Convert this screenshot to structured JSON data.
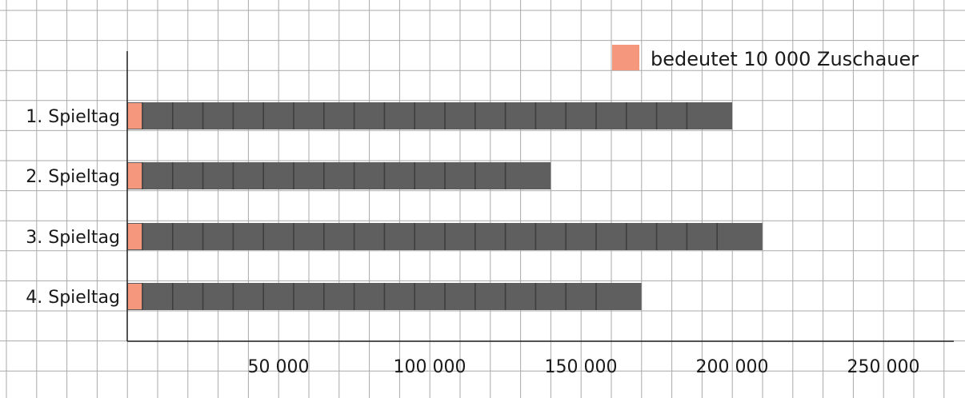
{
  "chart_data": {
    "type": "bar",
    "orientation": "horizontal",
    "categories": [
      "1. Spieltag",
      "2. Spieltag",
      "3. Spieltag",
      "4. Spieltag"
    ],
    "values": [
      200000,
      140000,
      210000,
      170000
    ],
    "xlim": [
      0,
      270000
    ],
    "x_ticks": [
      50000,
      100000,
      150000,
      200000,
      250000
    ],
    "x_tick_labels": [
      "50 000",
      "100 000",
      "150 000",
      "200 000",
      "250 000"
    ],
    "legend": {
      "label": "bedeutet 10 000 Zuschauer",
      "color": "#f4977c",
      "unit_value": 10000,
      "placement": "top-right"
    },
    "bar_color": "#5f5f5f",
    "accent_color": "#f4977c",
    "grid": true,
    "grid_color": "#a9a9a9"
  }
}
